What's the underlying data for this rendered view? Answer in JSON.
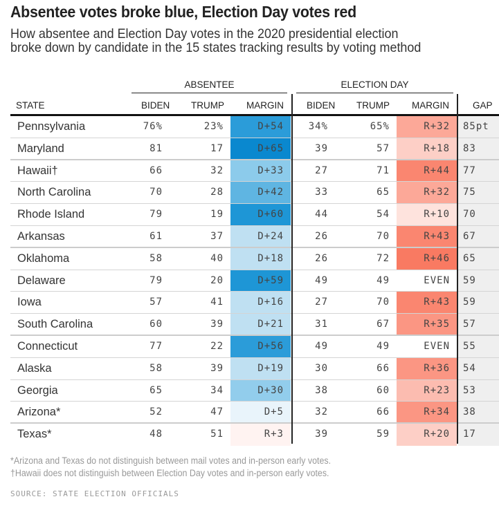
{
  "header": {
    "title": "Absentee votes broke blue, Election Day votes red",
    "subtitle_line1": "How absentee and Election Day votes in the 2020 presidential election",
    "subtitle_line2": "broke down by candidate in the 15 states tracking results by voting method"
  },
  "chart_data": {
    "type": "table",
    "title": "Absentee votes broke blue, Election Day votes red",
    "subtitle": "How absentee and Election Day votes in the 2020 presidential election broke down by candidate in the 15 states tracking results by voting method",
    "column_groups": [
      {
        "label": "ABSENTEE",
        "columns": [
          "BIDEN",
          "TRUMP",
          "MARGIN"
        ]
      },
      {
        "label": "ELECTION DAY",
        "columns": [
          "BIDEN",
          "TRUMP",
          "MARGIN"
        ]
      }
    ],
    "columns": [
      "STATE",
      "BIDEN",
      "TRUMP",
      "MARGIN",
      "BIDEN",
      "TRUMP",
      "MARGIN",
      "GAP"
    ],
    "rows": [
      {
        "state": "Pennsylvania",
        "abs_biden": "76%",
        "abs_trump": "23%",
        "abs_margin": "D+54",
        "ed_biden": "34%",
        "ed_trump": "65%",
        "ed_margin": "R+32",
        "gap": "85pt",
        "abs_val": 54,
        "ed_val": -32
      },
      {
        "state": "Maryland",
        "abs_biden": "81",
        "abs_trump": "17",
        "abs_margin": "D+65",
        "ed_biden": "39",
        "ed_trump": "57",
        "ed_margin": "R+18",
        "gap": "83",
        "abs_val": 65,
        "ed_val": -18
      },
      {
        "state": "Hawaii†",
        "abs_biden": "66",
        "abs_trump": "32",
        "abs_margin": "D+33",
        "ed_biden": "27",
        "ed_trump": "71",
        "ed_margin": "R+44",
        "gap": "77",
        "abs_val": 33,
        "ed_val": -44
      },
      {
        "state": "North Carolina",
        "abs_biden": "70",
        "abs_trump": "28",
        "abs_margin": "D+42",
        "ed_biden": "33",
        "ed_trump": "65",
        "ed_margin": "R+32",
        "gap": "75",
        "abs_val": 42,
        "ed_val": -32
      },
      {
        "state": "Rhode Island",
        "abs_biden": "79",
        "abs_trump": "19",
        "abs_margin": "D+60",
        "ed_biden": "44",
        "ed_trump": "54",
        "ed_margin": "R+10",
        "gap": "70",
        "abs_val": 60,
        "ed_val": -10
      },
      {
        "state": "Arkansas",
        "abs_biden": "61",
        "abs_trump": "37",
        "abs_margin": "D+24",
        "ed_biden": "26",
        "ed_trump": "70",
        "ed_margin": "R+43",
        "gap": "67",
        "abs_val": 24,
        "ed_val": -43
      },
      {
        "state": "Oklahoma",
        "abs_biden": "58",
        "abs_trump": "40",
        "abs_margin": "D+18",
        "ed_biden": "26",
        "ed_trump": "72",
        "ed_margin": "R+46",
        "gap": "65",
        "abs_val": 18,
        "ed_val": -46
      },
      {
        "state": "Delaware",
        "abs_biden": "79",
        "abs_trump": "20",
        "abs_margin": "D+59",
        "ed_biden": "49",
        "ed_trump": "49",
        "ed_margin": "EVEN",
        "gap": "59",
        "abs_val": 59,
        "ed_val": 0
      },
      {
        "state": "Iowa",
        "abs_biden": "57",
        "abs_trump": "41",
        "abs_margin": "D+16",
        "ed_biden": "27",
        "ed_trump": "70",
        "ed_margin": "R+43",
        "gap": "59",
        "abs_val": 16,
        "ed_val": -43
      },
      {
        "state": "South Carolina",
        "abs_biden": "60",
        "abs_trump": "39",
        "abs_margin": "D+21",
        "ed_biden": "31",
        "ed_trump": "67",
        "ed_margin": "R+35",
        "gap": "57",
        "abs_val": 21,
        "ed_val": -35
      },
      {
        "state": "Connecticut",
        "abs_biden": "77",
        "abs_trump": "22",
        "abs_margin": "D+56",
        "ed_biden": "49",
        "ed_trump": "49",
        "ed_margin": "EVEN",
        "gap": "55",
        "abs_val": 56,
        "ed_val": 0
      },
      {
        "state": "Alaska",
        "abs_biden": "58",
        "abs_trump": "39",
        "abs_margin": "D+19",
        "ed_biden": "30",
        "ed_trump": "66",
        "ed_margin": "R+36",
        "gap": "54",
        "abs_val": 19,
        "ed_val": -36
      },
      {
        "state": "Georgia",
        "abs_biden": "65",
        "abs_trump": "34",
        "abs_margin": "D+30",
        "ed_biden": "38",
        "ed_trump": "60",
        "ed_margin": "R+23",
        "gap": "53",
        "abs_val": 30,
        "ed_val": -23
      },
      {
        "state": "Arizona*",
        "abs_biden": "52",
        "abs_trump": "47",
        "abs_margin": "D+5",
        "ed_biden": "32",
        "ed_trump": "66",
        "ed_margin": "R+34",
        "gap": "38",
        "abs_val": 5,
        "ed_val": -34
      },
      {
        "state": "Texas*",
        "abs_biden": "48",
        "abs_trump": "51",
        "abs_margin": "R+3",
        "ed_biden": "39",
        "ed_trump": "59",
        "ed_margin": "R+20",
        "gap": "17",
        "abs_val": -3,
        "ed_val": -20
      }
    ],
    "color_scale": {
      "dem": [
        "#e9f4fb",
        "#c0e1f3",
        "#9fd2ee",
        "#8ccbeb",
        "#5fb5e2",
        "#3fa6de",
        "#1e96d6",
        "#0a88cf"
      ],
      "rep": [
        "#ffffff",
        "#fff3f1",
        "#fee3dd",
        "#fdd0c7",
        "#fcbbae",
        "#fca797",
        "#fb9481",
        "#fa8670",
        "#f97a62"
      ],
      "neutral": "#ffffff"
    }
  },
  "footnotes": {
    "note1": "*Arizona and Texas do not distinguish between mail votes and in-person early votes.",
    "note2": "†Hawaii does not distinguish between Election Day votes and in-person early votes.",
    "source": "SOURCE: STATE ELECTION OFFICIALS"
  }
}
